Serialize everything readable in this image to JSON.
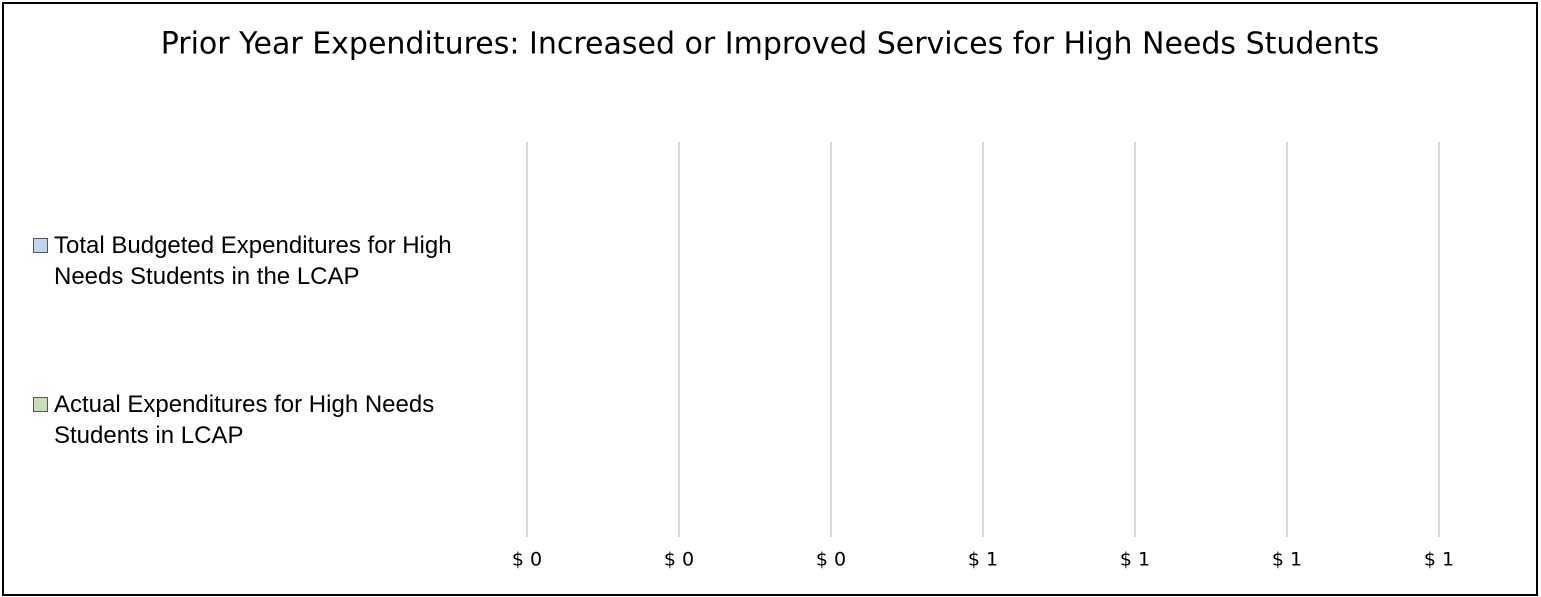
{
  "chart_data": {
    "type": "hbar",
    "title": "Prior Year Expenditures: Increased or Improved Services for High Needs Students",
    "categories": [
      null
    ],
    "series": [
      {
        "name": "Total Budgeted Expenditures for High Needs Students in the LCAP",
        "color": "#bdd7ee",
        "values": [
          0
        ]
      },
      {
        "name": "Actual Expenditures for High Needs Students in LCAP",
        "color": "#c5e0b4",
        "values": [
          0
        ]
      }
    ],
    "xlim": [
      0,
      1.2
    ],
    "xticks": [
      {
        "value": 0,
        "label": "$ 0"
      },
      {
        "value": 0.2,
        "label": "$ 0"
      },
      {
        "value": 0.4,
        "label": "$ 0"
      },
      {
        "value": 0.6,
        "label": "$ 1"
      },
      {
        "value": 0.8,
        "label": "$ 1"
      },
      {
        "value": 1.0,
        "label": "$ 1"
      },
      {
        "value": 1.2,
        "label": "$ 1"
      }
    ],
    "grid": true,
    "legend": "left"
  }
}
